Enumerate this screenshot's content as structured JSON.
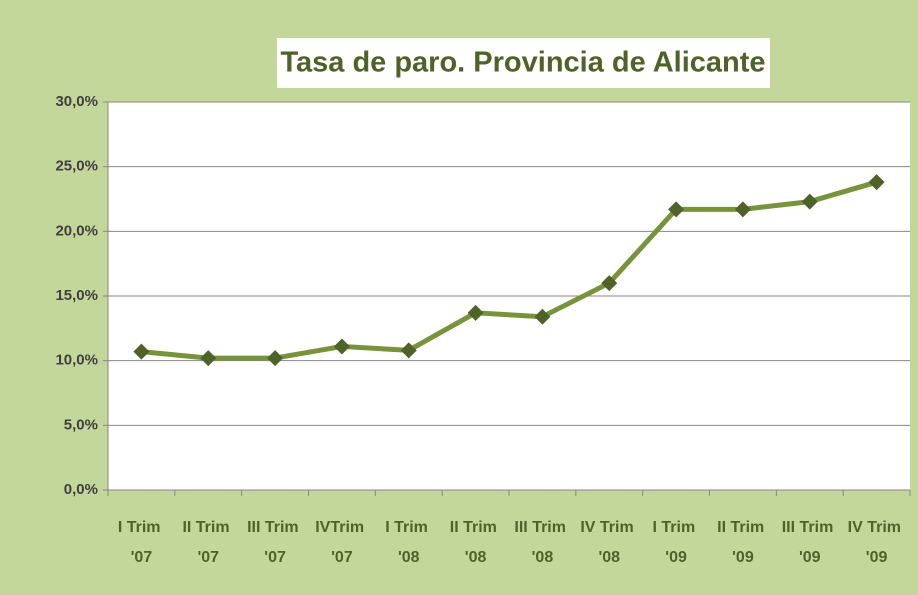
{
  "chart_data": {
    "type": "line",
    "title": "Tasa de paro. Provincia de Alicante",
    "categories": [
      "I Trim '07",
      "II Trim '07",
      "III Trim '07",
      "IVTrim '07",
      "I Trim '08",
      "II Trim '08",
      "III Trim '08",
      "IV Trim '08",
      "I Trim '09",
      "II Trim '09",
      "III Trim '09",
      "IV Trim '09"
    ],
    "series": [
      {
        "name": "Tasa de paro",
        "color": "#77933c",
        "marker_color": "#4f6228",
        "values": [
          10.7,
          10.2,
          10.2,
          11.1,
          10.8,
          13.7,
          13.4,
          16.0,
          21.7,
          21.7,
          22.3,
          23.8
        ]
      }
    ],
    "ylim": [
      0,
      30
    ],
    "yticks": [
      {
        "value": 0,
        "label": "0,0%"
      },
      {
        "value": 5,
        "label": "5,0%"
      },
      {
        "value": 10,
        "label": "10,0%"
      },
      {
        "value": 15,
        "label": "15,0%"
      },
      {
        "value": 20,
        "label": "20,0%"
      },
      {
        "value": 25,
        "label": "25,0%"
      },
      {
        "value": 30,
        "label": "30,0%"
      }
    ],
    "grid": true
  }
}
